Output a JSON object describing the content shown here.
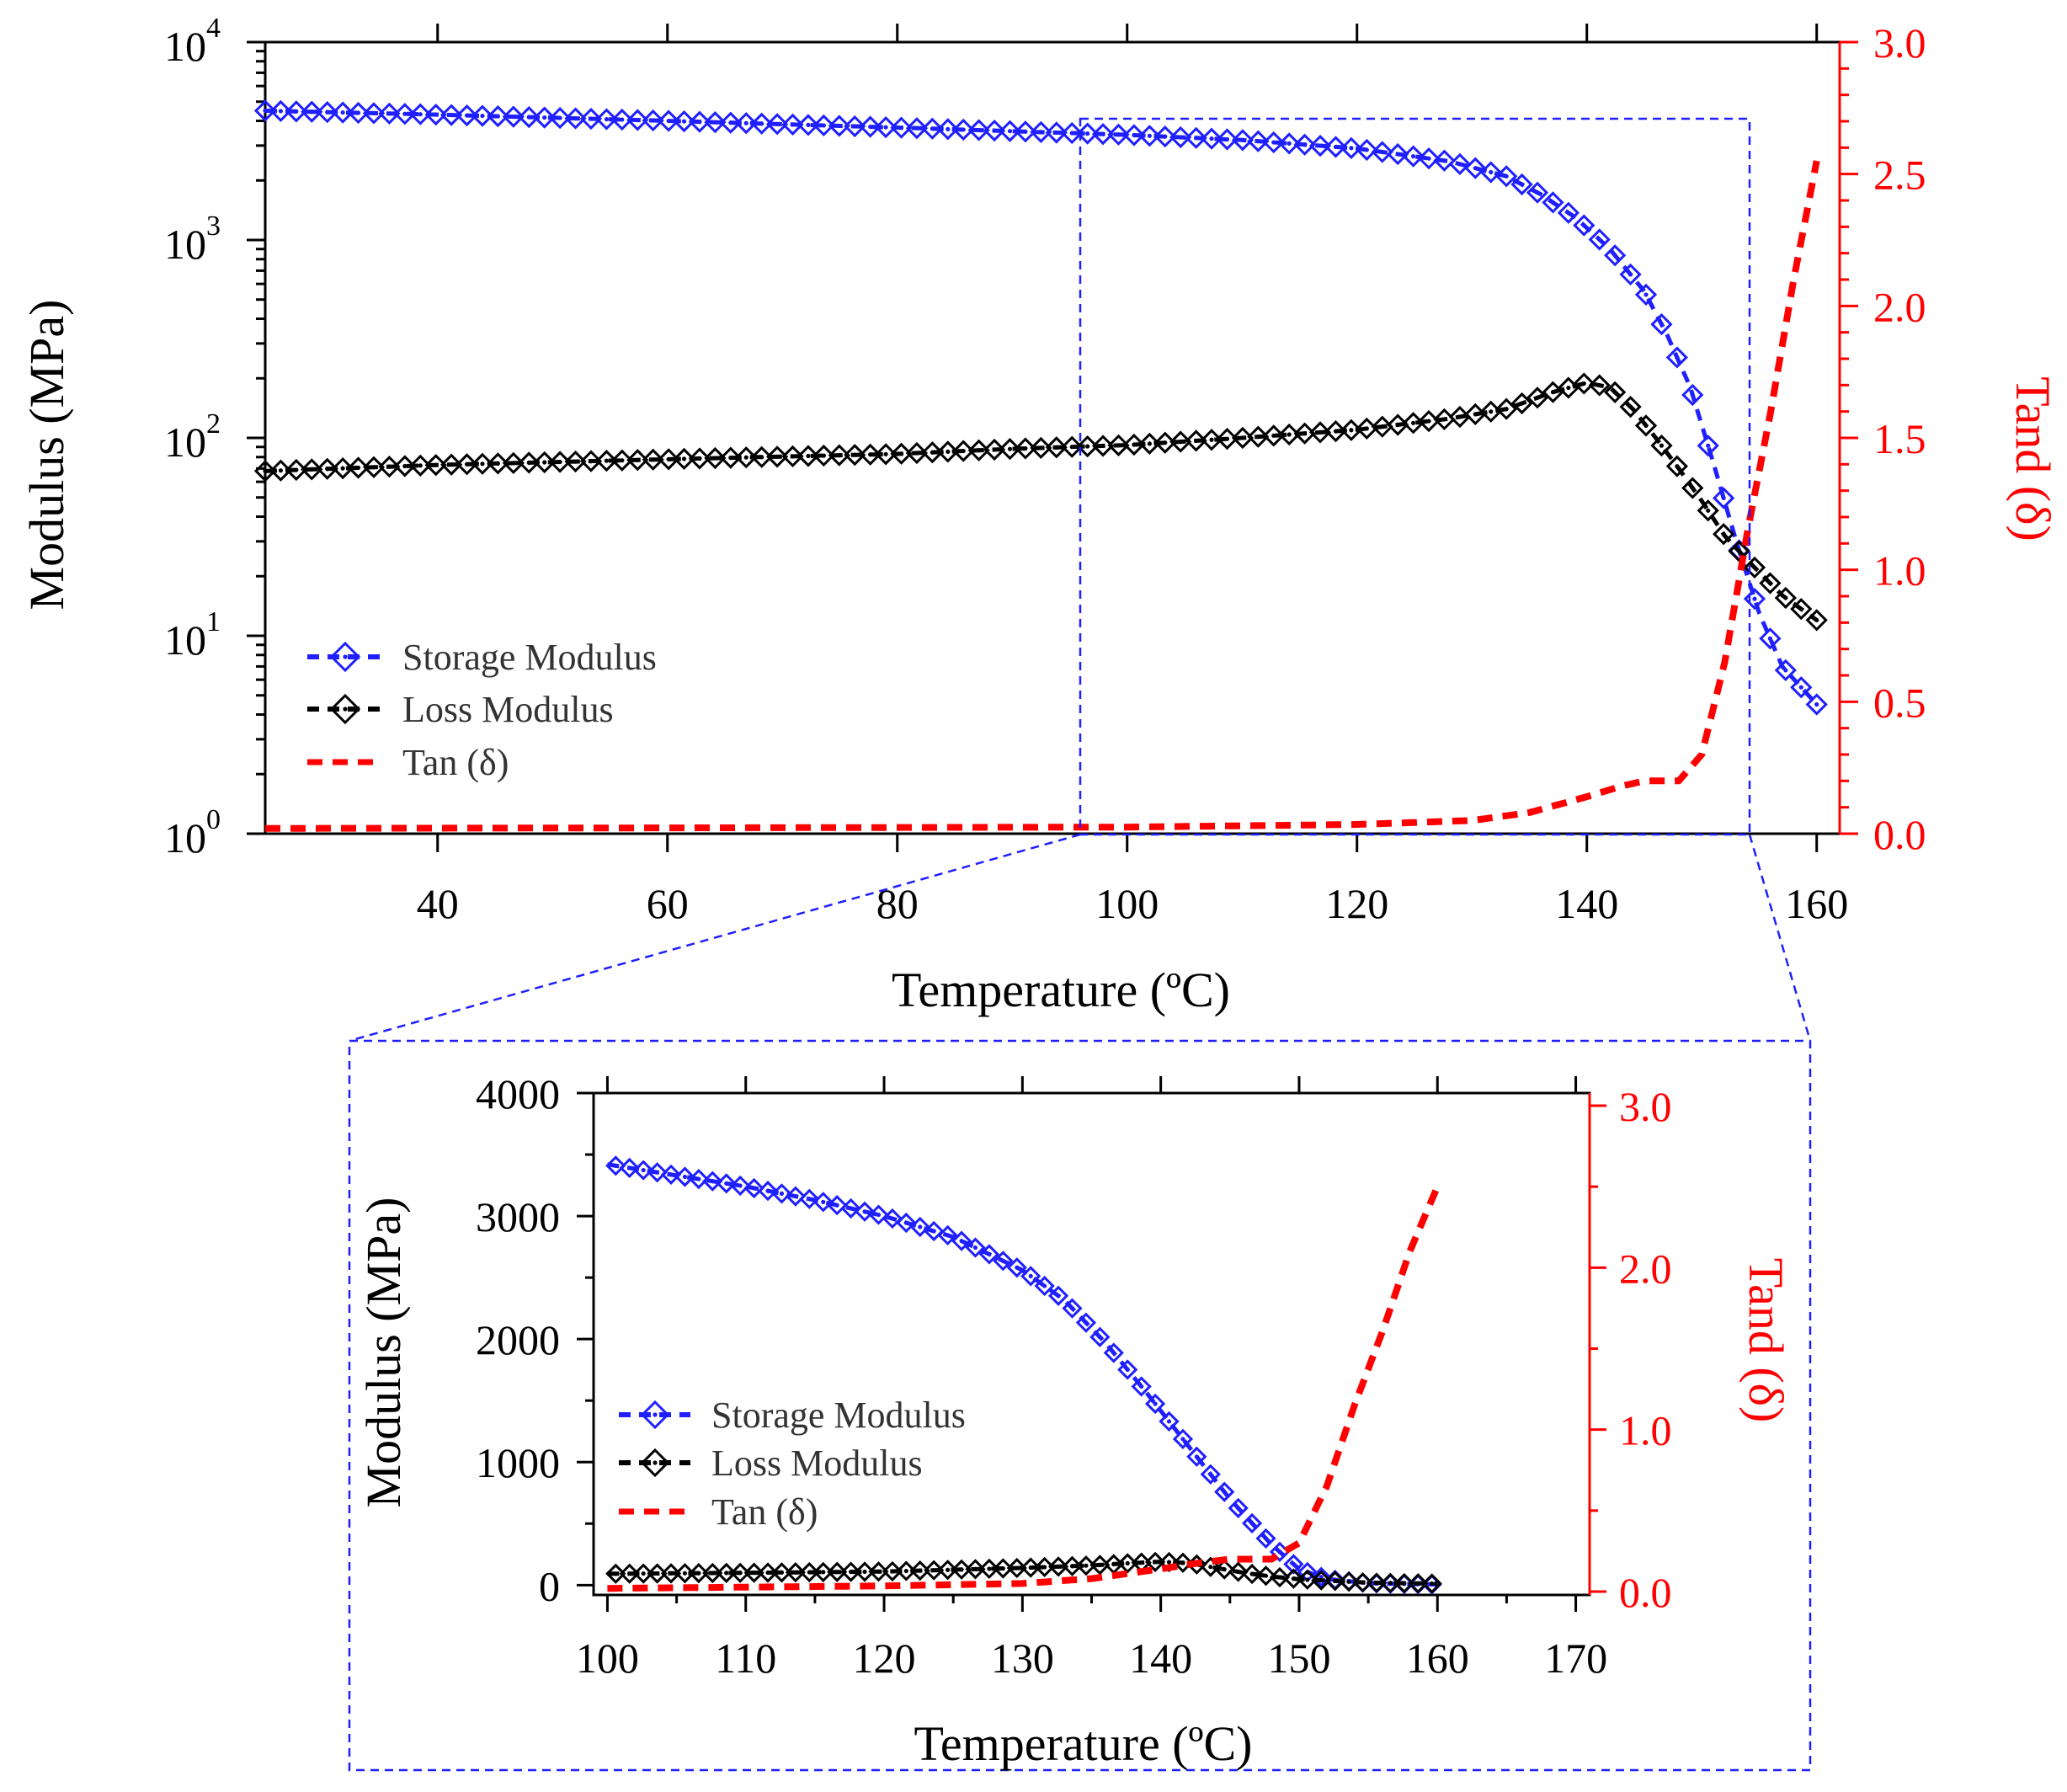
{
  "chart_data": [
    {
      "id": "main",
      "type": "line",
      "x_axis": {
        "label": "Temperature (ºC)",
        "range": [
          25,
          162
        ],
        "ticks": [
          40,
          60,
          80,
          100,
          120,
          140,
          160
        ]
      },
      "y_axis_left": {
        "label": "Modulus (MPa)",
        "scale": "log",
        "range": [
          1,
          10000
        ],
        "tick_labels": [
          {
            "base": "10",
            "exp": "0",
            "value": 1
          },
          {
            "base": "10",
            "exp": "1",
            "value": 10
          },
          {
            "base": "10",
            "exp": "2",
            "value": 100
          },
          {
            "base": "10",
            "exp": "3",
            "value": 1000
          },
          {
            "base": "10",
            "exp": "4",
            "value": 10000
          }
        ]
      },
      "y_axis_right": {
        "label": "Tand (δ)",
        "range": [
          0,
          3.0
        ],
        "ticks": [
          "0.0",
          "0.5",
          "1.0",
          "1.5",
          "2.0",
          "2.5",
          "3.0"
        ]
      },
      "legend": [
        "Storage Modulus",
        "Loss Modulus",
        "Tan (δ)"
      ],
      "series": [
        {
          "name": "Storage Modulus",
          "color": "#1f1fff",
          "axis": "left",
          "x": [
            25,
            40,
            60,
            80,
            100,
            110,
            120,
            128,
            133,
            136,
            139,
            142,
            145,
            147,
            149,
            151,
            153,
            155,
            157,
            160
          ],
          "y": [
            4500,
            4300,
            4000,
            3700,
            3400,
            3200,
            2900,
            2500,
            2100,
            1700,
            1300,
            900,
            550,
            330,
            180,
            75,
            30,
            13,
            7,
            4.5
          ]
        },
        {
          "name": "Loss Modulus",
          "color": "#000000",
          "axis": "left",
          "x": [
            25,
            40,
            60,
            80,
            90,
            100,
            110,
            120,
            128,
            133,
            137,
            140,
            142,
            144,
            146,
            148,
            150,
            152,
            154,
            157,
            160
          ],
          "y": [
            68,
            73,
            78,
            83,
            88,
            92,
            100,
            110,
            125,
            140,
            170,
            190,
            180,
            140,
            100,
            70,
            48,
            32,
            24,
            16,
            12
          ]
        },
        {
          "name": "Tan (δ)",
          "color": "#ff0000",
          "axis": "right",
          "x": [
            25,
            60,
            100,
            120,
            130,
            135,
            140,
            143,
            145,
            148,
            150,
            152,
            154,
            156,
            158,
            160
          ],
          "y": [
            0.02,
            0.022,
            0.025,
            0.035,
            0.05,
            0.08,
            0.14,
            0.18,
            0.2,
            0.2,
            0.3,
            0.65,
            1.15,
            1.6,
            2.1,
            2.55
          ]
        }
      ]
    },
    {
      "id": "inset",
      "type": "line",
      "x_axis": {
        "label": "Temperature (ºC)",
        "range": [
          99,
          171
        ],
        "ticks": [
          100,
          110,
          120,
          130,
          140,
          150,
          160,
          170
        ]
      },
      "y_axis_left": {
        "label": "Modulus (MPa)",
        "range": [
          -80,
          4000
        ],
        "ticks": [
          0,
          1000,
          2000,
          3000,
          4000
        ]
      },
      "y_axis_right": {
        "label": "Tand (δ)",
        "range": [
          0,
          3.0
        ],
        "ticks": [
          "0.0",
          "1.0",
          "2.0",
          "3.0"
        ]
      },
      "legend": [
        "Storage Modulus",
        "Loss Modulus",
        "Tan (δ)"
      ],
      "series": [
        {
          "name": "Storage Modulus",
          "color": "#1f1fff",
          "axis": "left",
          "x": [
            100,
            105,
            110,
            115,
            120,
            125,
            130,
            133,
            136,
            139,
            142,
            145,
            148,
            150,
            152,
            155,
            160
          ],
          "y": [
            3420,
            3330,
            3240,
            3130,
            3000,
            2830,
            2560,
            2320,
            1970,
            1560,
            1130,
            700,
            330,
            130,
            50,
            15,
            5
          ]
        },
        {
          "name": "Loss Modulus",
          "color": "#000000",
          "axis": "left",
          "x": [
            100,
            110,
            120,
            130,
            135,
            138,
            140,
            142,
            144,
            146,
            148,
            150,
            155,
            160
          ],
          "y": [
            92,
            100,
            110,
            140,
            160,
            180,
            190,
            180,
            140,
            100,
            70,
            48,
            20,
            12
          ]
        },
        {
          "name": "Tan (δ)",
          "color": "#ff0000",
          "axis": "right",
          "x": [
            100,
            120,
            130,
            135,
            140,
            143,
            145,
            148,
            150,
            152,
            154,
            156,
            158,
            160
          ],
          "y": [
            0.02,
            0.035,
            0.05,
            0.08,
            0.14,
            0.18,
            0.2,
            0.2,
            0.3,
            0.65,
            1.15,
            1.6,
            2.1,
            2.5
          ]
        }
      ]
    }
  ]
}
